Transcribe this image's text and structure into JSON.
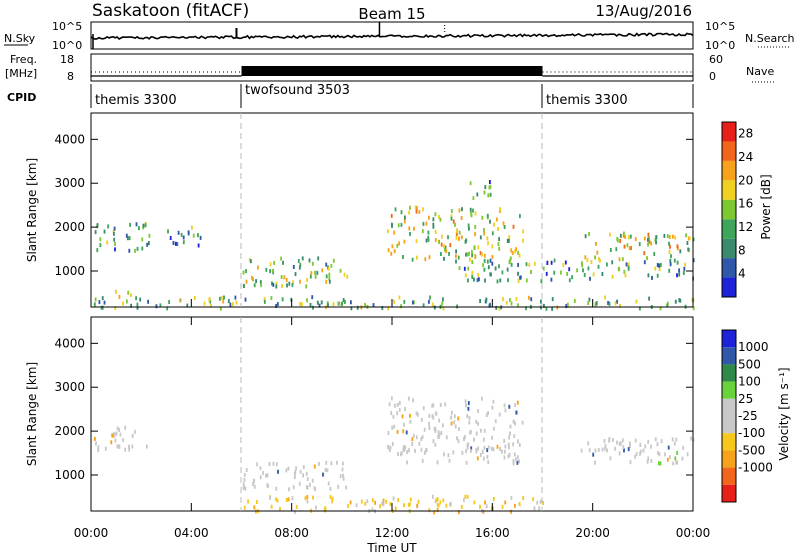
{
  "header": {
    "station": "Saskatoon (fitACF)",
    "beam": "Beam 15",
    "date": "13/Aug/2016"
  },
  "colors": {
    "noise_trace": "#000000",
    "power_scale": [
      "#1e22d8",
      "#2f58a8",
      "#3a8a6e",
      "#3ea55a",
      "#7ec832",
      "#f0d020",
      "#f6a21a",
      "#f2661c",
      "#e8201a"
    ],
    "velocity_scale": [
      "#e8201a",
      "#f2661c",
      "#f6a21a",
      "#f6c81e",
      "#c8c8c8",
      "#c8c8c8",
      "#6ad23a",
      "#2f8a4a",
      "#2f58a8",
      "#1e22d8"
    ]
  },
  "chart_data": [
    {
      "type": "line",
      "panel": "noise",
      "ylabel_left": "N.Sky",
      "ylabel_right": "N.Search",
      "yticks_left": [
        "10^5",
        "10^0"
      ],
      "yticks_right": [
        "10^5",
        "10^0"
      ],
      "xlim": [
        "00:00",
        "00:00"
      ]
    },
    {
      "type": "line",
      "panel": "frequency",
      "ylabel_left": "Freq.",
      "ylabel_left_unit": "[MHz]",
      "ylabel_right": "Nave",
      "yticks_left": [
        "18",
        "8"
      ],
      "yticks_right": [
        "60",
        "0"
      ],
      "segments": [
        {
          "start": "00:00",
          "end": "06:00",
          "freq_level": "low",
          "nave_level": "dotted"
        },
        {
          "start": "06:00",
          "end": "18:00",
          "freq_level": "high",
          "nave_level": "dense"
        },
        {
          "start": "18:00",
          "end": "24:00",
          "freq_level": "low",
          "nave_level": "dotted"
        }
      ]
    },
    {
      "type": "table",
      "panel": "cpid",
      "label": "CPID",
      "entries": [
        {
          "name": "themis 3300",
          "start": "00:00",
          "end": "06:00"
        },
        {
          "name": "twofsound 3503",
          "start": "06:00",
          "end": "18:00"
        },
        {
          "name": "themis 3300",
          "start": "18:00",
          "end": "24:00"
        }
      ]
    },
    {
      "type": "heatmap",
      "panel": "power",
      "ylabel": "Slant Range [km]",
      "yticks": [
        1000,
        2000,
        3000,
        4000
      ],
      "ylim": [
        180,
        4600
      ],
      "colorbar_label": "Power [dB]",
      "colorbar_ticks": [
        4,
        8,
        12,
        16,
        20,
        24,
        28
      ],
      "colorbar_range": [
        0,
        30
      ],
      "regions": [
        {
          "t0": 0.0,
          "t1": 2.3,
          "r0": 1500,
          "r1": 2150,
          "level": 0.35
        },
        {
          "t0": 3.0,
          "t1": 4.4,
          "r0": 1600,
          "r1": 2100,
          "level": 0.3
        },
        {
          "t0": 0.6,
          "t1": 1.6,
          "r0": 450,
          "r1": 650,
          "level": 0.45
        },
        {
          "t0": 6.0,
          "t1": 10.2,
          "r0": 650,
          "r1": 1350,
          "level": 0.45
        },
        {
          "t0": 11.8,
          "t1": 17.2,
          "r0": 1300,
          "r1": 2500,
          "level": 0.55
        },
        {
          "t0": 14.5,
          "t1": 24.0,
          "r0": 800,
          "r1": 1300,
          "level": 0.35
        },
        {
          "t0": 19.5,
          "t1": 24.0,
          "r0": 1300,
          "r1": 1900,
          "level": 0.55
        },
        {
          "t0": 15.0,
          "t1": 15.9,
          "r0": 2700,
          "r1": 3200,
          "level": 0.3
        },
        {
          "t0": 0.0,
          "t1": 24.0,
          "r0": 180,
          "r1": 450,
          "level": 0.4
        }
      ]
    },
    {
      "type": "heatmap",
      "panel": "velocity",
      "ylabel": "Slant Range [km]",
      "yticks": [
        1000,
        2000,
        3000,
        4000
      ],
      "ylim": [
        180,
        4600
      ],
      "xticks": [
        "00:00",
        "04:00",
        "08:00",
        "12:00",
        "16:00",
        "20:00",
        "00:00"
      ],
      "xlabel": "Time UT",
      "colorbar_label": "Velocity [m s⁻¹]",
      "colorbar_ticks": [
        1000,
        500,
        100,
        25,
        -25,
        -100,
        -500,
        -1000
      ],
      "regions": [
        {
          "t0": 0.0,
          "t1": 2.3,
          "r0": 1600,
          "r1": 2150,
          "kind": "ground"
        },
        {
          "t0": 6.0,
          "t1": 10.2,
          "r0": 700,
          "r1": 1350,
          "kind": "ground"
        },
        {
          "t0": 11.8,
          "t1": 17.2,
          "r0": 1300,
          "r1": 2800,
          "kind": "ground"
        },
        {
          "t0": 19.5,
          "t1": 24.0,
          "r0": 1300,
          "r1": 1900,
          "kind": "ground"
        },
        {
          "t0": 6.0,
          "t1": 18.0,
          "r0": 180,
          "r1": 550,
          "kind": "negative"
        },
        {
          "t0": 22.5,
          "t1": 23.4,
          "r0": 1300,
          "r1": 1550,
          "kind": "positive"
        }
      ]
    }
  ]
}
